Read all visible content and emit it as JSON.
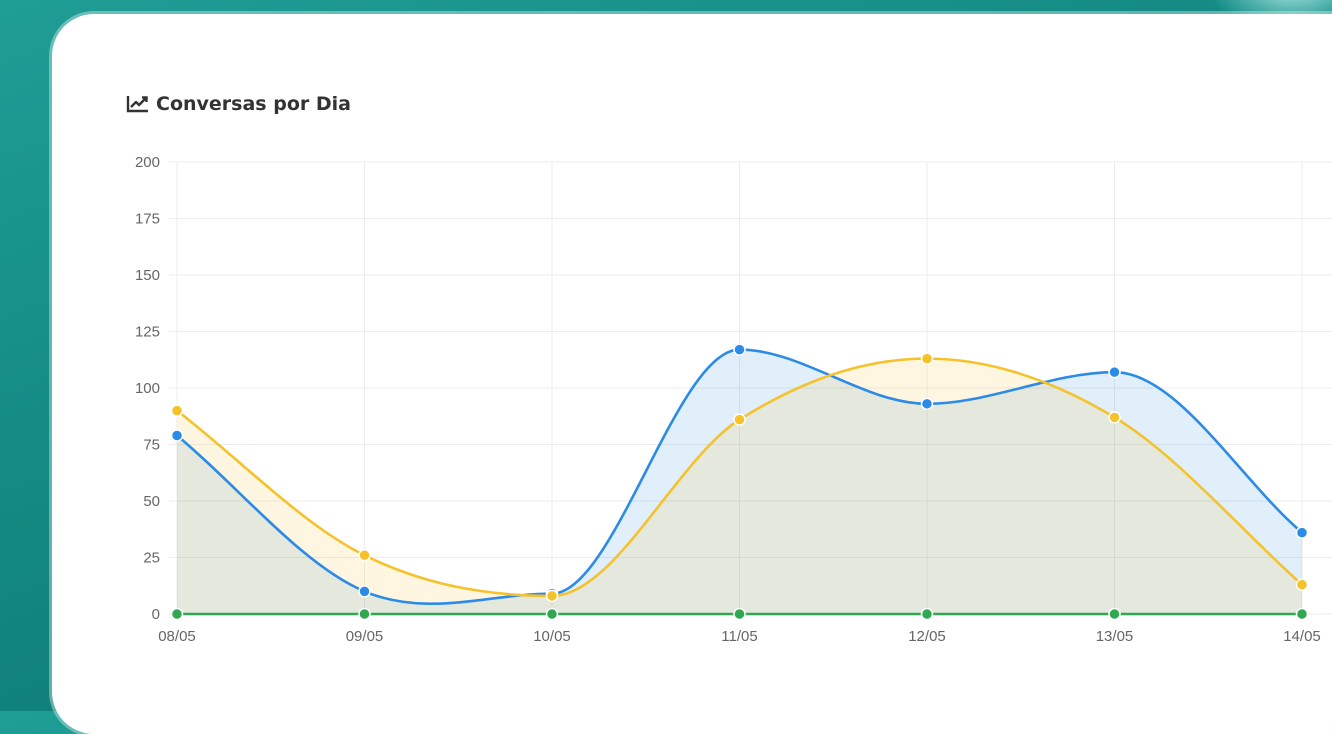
{
  "card": {
    "title": "Conversas por Dia",
    "title_icon": "line-chart-icon"
  },
  "colors": {
    "series_blue": "#2b8be6",
    "series_yellow": "#f5c22b",
    "series_green": "#2fa84f",
    "grid": "#ececec"
  },
  "chart_data": {
    "type": "line",
    "title": "Conversas por Dia",
    "xlabel": "",
    "ylabel": "",
    "categories": [
      "08/05",
      "09/05",
      "10/05",
      "11/05",
      "12/05",
      "13/05",
      "14/05"
    ],
    "ylim": [
      0,
      200
    ],
    "yticks": [
      0,
      25,
      50,
      75,
      100,
      125,
      150,
      175,
      200
    ],
    "grid": true,
    "legend": "none",
    "series": [
      {
        "values": [
          79,
          10,
          9,
          117,
          93,
          107,
          36
        ],
        "color": "#2b8be6"
      },
      {
        "values": [
          90,
          26,
          8,
          86,
          113,
          87,
          13
        ],
        "color": "#f5c22b"
      },
      {
        "values": [
          0,
          0,
          0,
          0,
          0,
          0,
          0
        ],
        "color": "#2fa84f"
      }
    ]
  }
}
